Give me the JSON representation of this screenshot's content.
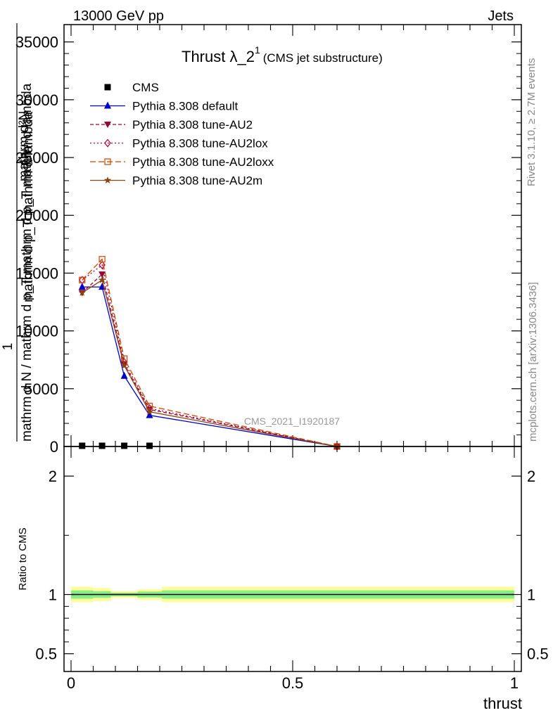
{
  "header": {
    "left": "13000 GeV pp",
    "right": "Jets"
  },
  "title": {
    "main": "Thrust λ_2",
    "superscript": "1",
    "suffix": "(CMS jet substructure)"
  },
  "side_labels": {
    "rivet": "Rivet 3.1.10, ≥ 2.7M events",
    "mcplots": "mcplots.cern.ch [arXiv:1306.3436]"
  },
  "watermark": "CMS_2021_I1920187",
  "y_axis_label": {
    "numerator_top": "mathrm d²N",
    "denominator_top": "mathrm d p_T mathrm d lambda",
    "prefix_top": "1",
    "combined": "mathrm d N / mathrm d p_T mathrm d p_T mathrm d lambda",
    "denominator": "mathrm d N / mathrm d p_T"
  },
  "ratio_ylabel": "Ratio to CMS",
  "xlabel": "thrust",
  "colors": {
    "cms": "#000000",
    "default": "#0000cc",
    "au2": "#990033",
    "au2lox": "#aa0033",
    "au2loxx": "#cc4400",
    "au2m": "#884411",
    "band_outer": "#ffff99",
    "band_inner": "#88ee88"
  },
  "chart_data": [
    {
      "type": "line",
      "panel": "main",
      "xlim": [
        0,
        1
      ],
      "ylim": [
        0,
        36500
      ],
      "y_ticks": [
        0,
        5000,
        10000,
        15000,
        20000,
        25000,
        30000,
        35000
      ],
      "y_tick_labels": [
        "0",
        "5000",
        "10000",
        "15000",
        "20000",
        "25000",
        "30000",
        "35000"
      ],
      "x": [
        0.025,
        0.07,
        0.12,
        0.177,
        0.6
      ],
      "series": [
        {
          "name": "CMS",
          "marker": "square",
          "values": [
            0,
            0,
            0,
            0,
            0
          ]
        },
        {
          "name": "Pythia 8.308 default",
          "marker": "triangle-up",
          "dash": "",
          "values": [
            13800,
            13800,
            6100,
            2700,
            0
          ]
        },
        {
          "name": "Pythia 8.308 tune-AU2",
          "marker": "triangle-down",
          "dash": "5,3",
          "values": [
            13300,
            14900,
            7100,
            3200,
            0
          ]
        },
        {
          "name": "Pythia 8.308 tune-AU2lox",
          "marker": "diamond",
          "dash": "2,3",
          "values": [
            14400,
            15700,
            7300,
            3300,
            0
          ]
        },
        {
          "name": "Pythia 8.308 tune-AU2loxx",
          "marker": "open-square",
          "dash": "8,4",
          "values": [
            14400,
            16200,
            7600,
            3500,
            0
          ]
        },
        {
          "name": "Pythia 8.308 tune-AU2m",
          "marker": "star",
          "dash": "",
          "values": [
            13300,
            14400,
            7000,
            3000,
            0
          ]
        }
      ]
    },
    {
      "type": "area",
      "panel": "ratio",
      "xlim": [
        0,
        1
      ],
      "ylim": [
        0.35,
        2.25
      ],
      "y_ticks": [
        0.5,
        1,
        2
      ],
      "y_tick_labels": [
        "0.5",
        "1",
        "2"
      ],
      "x_ticks": [
        0,
        0.5,
        1
      ],
      "x_tick_labels": [
        "0",
        "0.5",
        "1"
      ],
      "bins": [
        [
          0,
          0.05
        ],
        [
          0.05,
          0.09
        ],
        [
          0.09,
          0.15
        ],
        [
          0.15,
          0.205
        ],
        [
          0.205,
          1
        ]
      ],
      "band_outer": [
        [
          0.935,
          1.065
        ],
        [
          0.945,
          1.055
        ],
        [
          0.97,
          1.03
        ],
        [
          0.955,
          1.045
        ],
        [
          0.935,
          1.065
        ]
      ],
      "band_inner": [
        [
          0.965,
          1.035
        ],
        [
          0.972,
          1.028
        ],
        [
          0.985,
          1.015
        ],
        [
          0.975,
          1.025
        ],
        [
          0.965,
          1.035
        ]
      ],
      "reference": 1
    }
  ]
}
